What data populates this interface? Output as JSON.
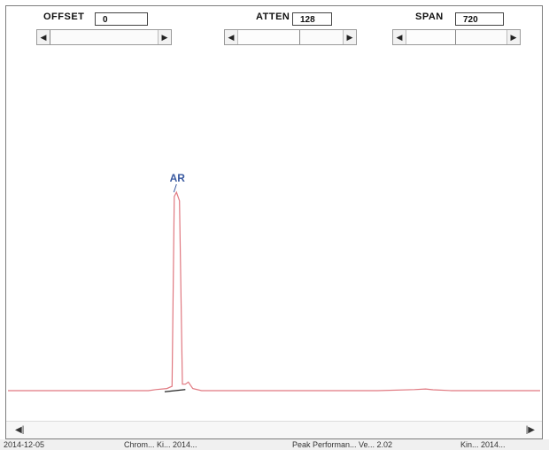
{
  "controls": {
    "offset": {
      "label": "OFFSET",
      "value": "0"
    },
    "atten": {
      "label": "ATTEN",
      "value": "128"
    },
    "span": {
      "label": "SPAN",
      "value": "720"
    }
  },
  "chart_data": {
    "type": "line",
    "title": "",
    "xlabel": "",
    "ylabel": "",
    "xlim": [
      0,
      720
    ],
    "ylim": [
      0,
      100
    ],
    "grid": false,
    "colors": {
      "trace": "#e07880",
      "baseline": "#222222",
      "label": "#3a5aa0"
    },
    "series": [
      {
        "values_xy": [
          [
            0,
            0
          ],
          [
            120,
            0
          ],
          [
            190,
            0
          ],
          [
            200,
            0.5
          ],
          [
            215,
            1
          ],
          [
            222,
            2
          ],
          [
            225,
            90
          ],
          [
            228,
            92
          ],
          [
            232,
            88
          ],
          [
            236,
            3
          ],
          [
            240,
            3
          ],
          [
            244,
            4
          ],
          [
            250,
            1
          ],
          [
            262,
            0
          ],
          [
            300,
            0
          ],
          [
            500,
            0
          ],
          [
            550,
            0.5
          ],
          [
            565,
            0.8
          ],
          [
            575,
            0.4
          ],
          [
            600,
            0
          ],
          [
            720,
            0
          ]
        ]
      }
    ],
    "peaks": [
      {
        "label": "AR",
        "x": 228,
        "y": 92
      }
    ],
    "baseline_segment": {
      "x": [
        212,
        240
      ],
      "y": [
        -0.5,
        0.5
      ]
    }
  },
  "taskbar": {
    "items": [
      "2014-12-05",
      "Chrom... Ki... 2014...",
      "Peak Performan... Ve... 2.02",
      "Kin... 2014..."
    ]
  }
}
